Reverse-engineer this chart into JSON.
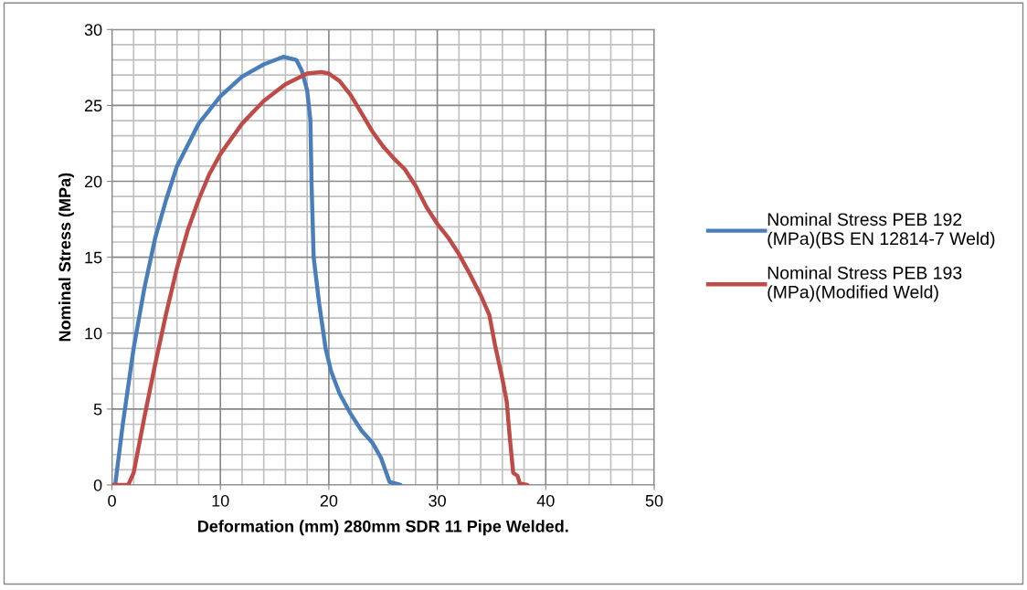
{
  "chart_data": {
    "type": "line",
    "xlabel": "Deformation (mm) 280mm SDR 11 Pipe Welded.",
    "ylabel": "Nominal Stress (MPa)",
    "xlim": [
      0,
      50
    ],
    "xticks": [
      0,
      10,
      20,
      30,
      40,
      50
    ],
    "ylim": [
      0,
      30
    ],
    "yticks": [
      0,
      5,
      10,
      15,
      20,
      25,
      30
    ],
    "grid": true,
    "legend": "right",
    "marker": "none",
    "line_style": "solid",
    "series": [
      {
        "name": "Nominal Stress PEB 192 (MPa)(BS EN 12814-7 Weld)",
        "color": "#4a7ebb",
        "x": [
          0.3,
          1,
          2,
          3,
          4,
          5,
          6,
          8,
          10,
          12,
          14,
          15.8,
          17,
          17.5,
          18,
          18.3,
          18.4,
          18.6,
          19.1,
          19.7,
          20.2,
          21,
          22,
          23,
          24,
          24.8,
          25.3,
          25.6,
          26.6
        ],
        "values": [
          0,
          4,
          9,
          13,
          16.3,
          18.8,
          21,
          23.8,
          25.6,
          26.9,
          27.7,
          28.2,
          28,
          27.3,
          26,
          24,
          20,
          15,
          12,
          9,
          7.5,
          6,
          4.7,
          3.6,
          2.8,
          1.8,
          0.8,
          0.2,
          0
        ]
      },
      {
        "name": "Nominal Stress PEB 193 (MPa)(Modified Weld)",
        "color": "#be4b48",
        "x": [
          0,
          1.5,
          2,
          3,
          4,
          5,
          6,
          7,
          8,
          9,
          10,
          12,
          14,
          16,
          18,
          19.3,
          20,
          21,
          22,
          23,
          24,
          25,
          26,
          27,
          28,
          29,
          30,
          31,
          32,
          33,
          34,
          34.8,
          35.3,
          36,
          36.4,
          36.7,
          37,
          37.4,
          37.6,
          38.3
        ],
        "values": [
          0,
          0,
          0.8,
          4.5,
          8,
          11.3,
          14.3,
          16.8,
          18.8,
          20.5,
          21.8,
          23.8,
          25.3,
          26.4,
          27.1,
          27.2,
          27.1,
          26.6,
          25.7,
          24.5,
          23.3,
          22.3,
          21.5,
          20.8,
          19.7,
          18.3,
          17.2,
          16.3,
          15.2,
          13.9,
          12.5,
          11.2,
          9.3,
          7,
          5.5,
          3,
          0.8,
          0.6,
          0.1,
          0
        ]
      }
    ]
  }
}
